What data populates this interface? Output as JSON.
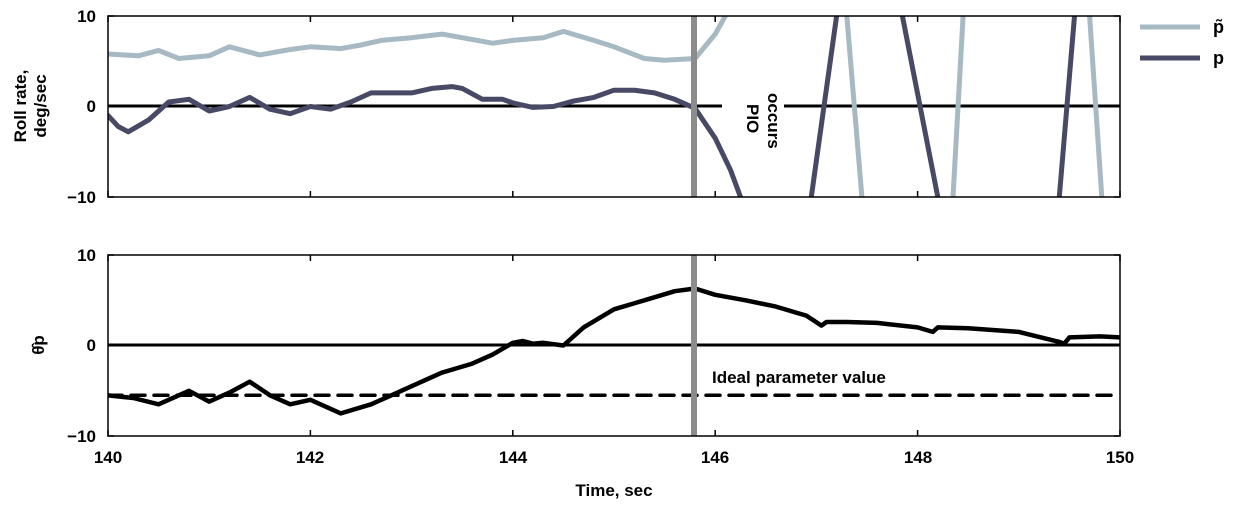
{
  "chart_data": [
    {
      "type": "line",
      "panel": "top",
      "ylabel": [
        "Roll rate,",
        "deg/sec"
      ],
      "xlim": [
        140,
        150
      ],
      "ylim": [
        -10,
        10
      ],
      "yticks": [
        10,
        0,
        -10
      ],
      "ytick_labels": [
        "10",
        "0",
        "−10"
      ],
      "grid": false,
      "legend_placement": "right, outside top",
      "series": [
        {
          "name": "p̃",
          "color": "#a7b9c2",
          "x": [
            140.0,
            140.3,
            140.5,
            140.7,
            141.0,
            141.2,
            141.5,
            141.8,
            142.0,
            142.3,
            142.5,
            142.7,
            143.0,
            143.3,
            143.5,
            143.8,
            144.0,
            144.3,
            144.5,
            144.8,
            145.0,
            145.3,
            145.5,
            145.8,
            146.0,
            146.1
          ],
          "y": [
            5.8,
            5.6,
            6.2,
            5.3,
            5.6,
            6.6,
            5.7,
            6.3,
            6.6,
            6.4,
            6.8,
            7.3,
            7.6,
            8.0,
            7.6,
            7.0,
            7.3,
            7.6,
            8.3,
            7.3,
            6.6,
            5.3,
            5.1,
            5.3,
            8.0,
            10.0
          ]
        },
        {
          "name": "p",
          "color": "#474965",
          "x": [
            140.0,
            140.1,
            140.2,
            140.4,
            140.6,
            140.8,
            141.0,
            141.2,
            141.4,
            141.6,
            141.8,
            142.0,
            142.2,
            142.4,
            142.6,
            142.8,
            143.0,
            143.2,
            143.4,
            143.5,
            143.7,
            143.9,
            144.0,
            144.2,
            144.4,
            144.6,
            144.8,
            145.0,
            145.2,
            145.4,
            145.6,
            145.8,
            146.0,
            146.15,
            146.25
          ],
          "y": [
            -1.0,
            -2.2,
            -2.8,
            -1.5,
            0.5,
            0.8,
            -0.5,
            0.0,
            1.0,
            -0.3,
            -0.8,
            0.0,
            -0.3,
            0.5,
            1.5,
            1.5,
            1.5,
            2.0,
            2.2,
            2.0,
            0.8,
            0.8,
            0.4,
            -0.1,
            0.0,
            0.6,
            1.0,
            1.8,
            1.8,
            1.5,
            0.8,
            -0.2,
            -3.5,
            -7.0,
            -10.0
          ]
        }
      ],
      "pio_segments_p": [
        {
          "x": [
            146.95,
            147.2
          ],
          "y": [
            -10,
            10
          ]
        },
        {
          "x": [
            147.85,
            148.2
          ],
          "y": [
            10,
            -10
          ]
        },
        {
          "x": [
            149.4,
            149.55
          ],
          "y": [
            -10,
            10
          ]
        }
      ],
      "pio_segments_p_tilde": [
        {
          "x": [
            147.3,
            147.45
          ],
          "y": [
            10,
            -10
          ]
        },
        {
          "x": [
            148.35,
            148.45
          ],
          "y": [
            -10,
            10
          ]
        },
        {
          "x": [
            149.7,
            149.82
          ],
          "y": [
            10,
            -10
          ]
        }
      ],
      "legend": [
        {
          "label": "p̃",
          "color": "#a7b9c2"
        },
        {
          "label": "p",
          "color": "#474965"
        }
      ],
      "annotations": [
        "PIO",
        "occurs"
      ],
      "vline_x": 145.8
    },
    {
      "type": "line",
      "panel": "bottom",
      "ylabel": "θ̂p",
      "xlabel": "Time, sec",
      "xlim": [
        140,
        150
      ],
      "ylim": [
        -10,
        10
      ],
      "yticks": [
        10,
        0,
        -10
      ],
      "ytick_labels": [
        "10",
        "0",
        "−10"
      ],
      "xticks": [
        140,
        142,
        144,
        146,
        148,
        150
      ],
      "xtick_labels": [
        "140",
        "142",
        "144",
        "146",
        "148",
        "150"
      ],
      "grid": false,
      "series": [
        {
          "color": "#000000",
          "x": [
            140.0,
            140.25,
            140.5,
            140.8,
            141.0,
            141.2,
            141.4,
            141.6,
            141.8,
            142.0,
            142.3,
            142.6,
            142.8,
            143.0,
            143.3,
            143.6,
            143.8,
            144.0,
            144.1,
            144.2,
            144.3,
            144.5,
            144.7,
            145.0,
            145.3,
            145.6,
            145.8,
            146.0,
            146.3,
            146.6,
            146.9,
            147.05,
            147.1,
            147.3,
            147.6,
            148.0,
            148.15,
            148.2,
            148.5,
            149.0,
            149.4,
            149.45,
            149.5,
            149.8,
            150.0
          ],
          "y": [
            -5.5,
            -5.8,
            -6.5,
            -5.0,
            -6.2,
            -5.2,
            -4.0,
            -5.5,
            -6.5,
            -6.0,
            -7.5,
            -6.5,
            -5.5,
            -4.5,
            -3.0,
            -2.0,
            -1.0,
            0.3,
            0.5,
            0.2,
            0.3,
            0.0,
            2.0,
            4.0,
            5.0,
            6.0,
            6.3,
            5.6,
            5.0,
            4.3,
            3.3,
            2.2,
            2.6,
            2.6,
            2.5,
            2.0,
            1.5,
            2.0,
            1.9,
            1.5,
            0.4,
            0.2,
            0.9,
            1.0,
            0.9
          ]
        }
      ],
      "ideal_value": -5.5,
      "annotations": [
        "Ideal parameter value"
      ],
      "vline_x": 145.8
    }
  ],
  "colors": {
    "p_tilde": "#a7b9c2",
    "p": "#474965",
    "theta": "#000000",
    "vline": "#8c8c8c",
    "axes": "#000000"
  }
}
